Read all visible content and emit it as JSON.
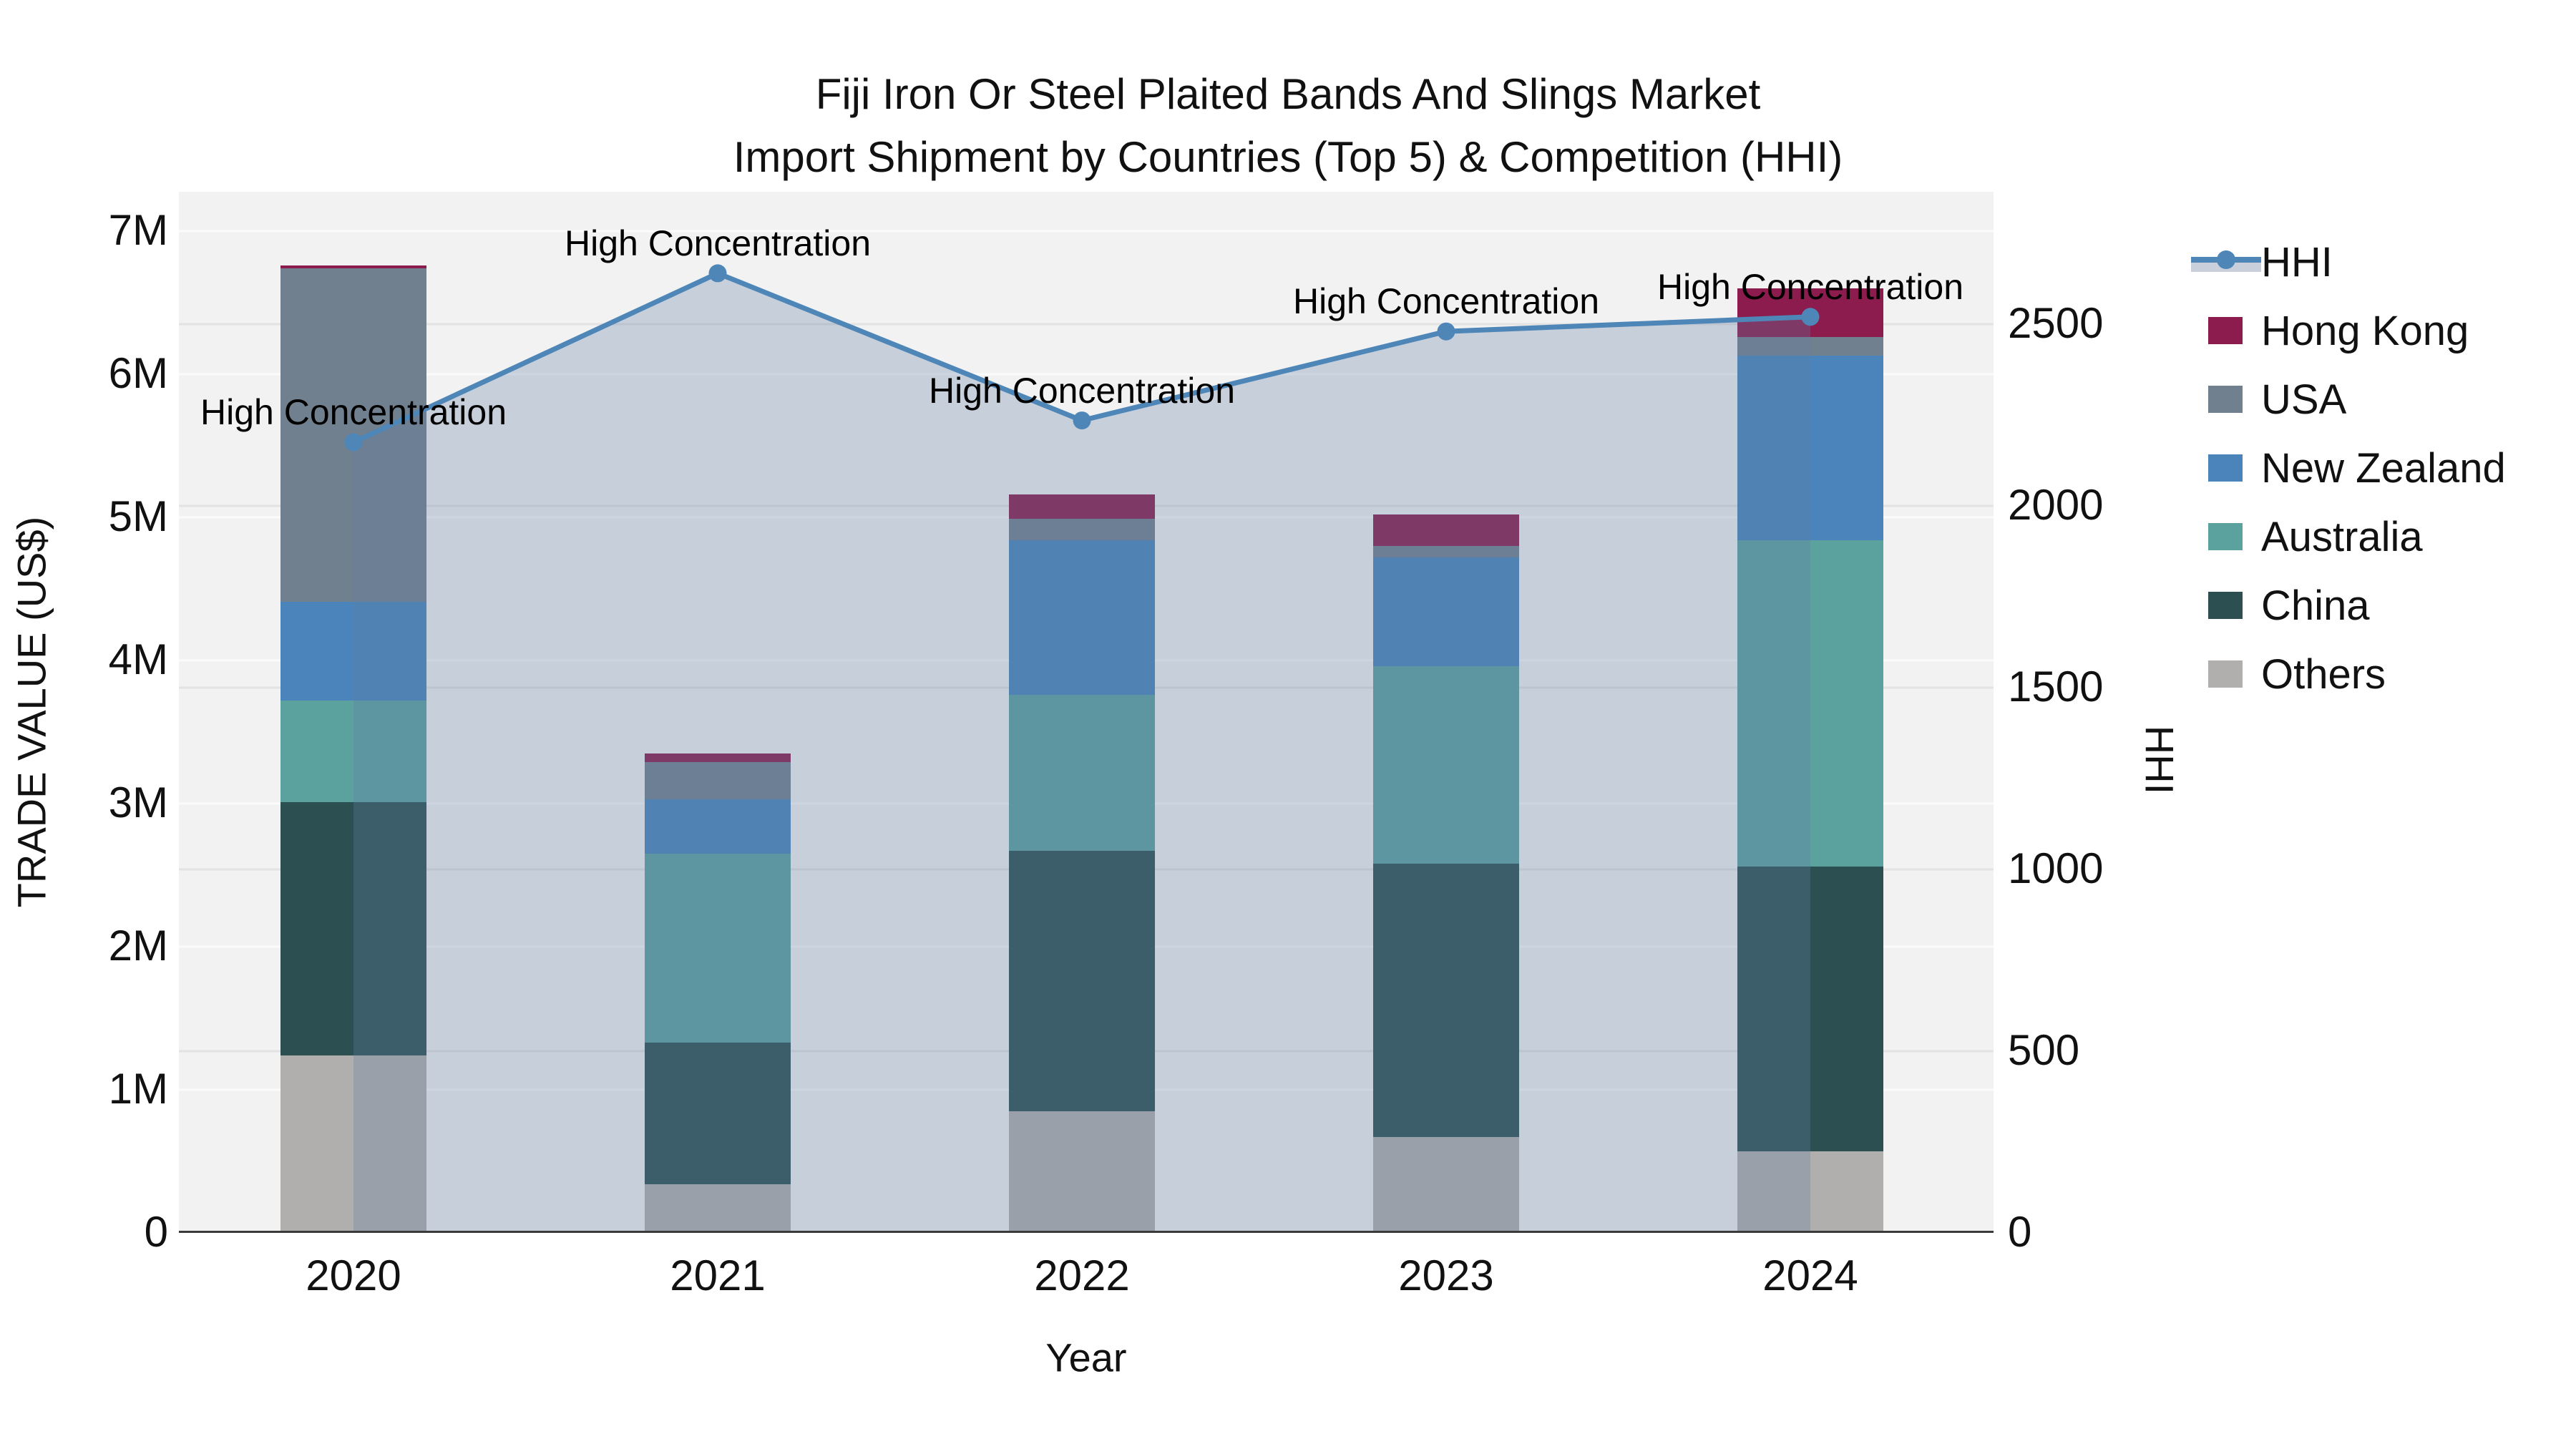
{
  "title": "Fiji Iron Or Steel Plaited Bands And Slings Market",
  "subtitle": "Import Shipment by Countries (Top 5) & Competition (HHI)",
  "axes": {
    "x_title": "Year",
    "y_left_title": "TRADE VALUE (US$)",
    "y_right_title": "HHI",
    "y_left_ticks": [
      "0",
      "1M",
      "2M",
      "3M",
      "4M",
      "5M",
      "6M",
      "7M"
    ],
    "y_right_ticks": [
      "0",
      "500",
      "1000",
      "1500",
      "2000",
      "2500"
    ]
  },
  "annotation_text": "High Concentration",
  "legend": {
    "items": [
      {
        "label": "HHI",
        "kind": "line",
        "color": "#4E86B8"
      },
      {
        "label": "Hong Kong",
        "kind": "swatch",
        "color": "#8B1C4D"
      },
      {
        "label": "USA",
        "kind": "swatch",
        "color": "#71808F"
      },
      {
        "label": "New Zealand",
        "kind": "swatch",
        "color": "#4A84BB"
      },
      {
        "label": "Australia",
        "kind": "swatch",
        "color": "#5BA19E"
      },
      {
        "label": "China",
        "kind": "swatch",
        "color": "#2C4F51"
      },
      {
        "label": "Others",
        "kind": "swatch",
        "color": "#B0AFAD"
      }
    ]
  },
  "chart_data": {
    "type": "bar",
    "subtype": "stacked-bars-with-line",
    "title": "Fiji Iron Or Steel Plaited Bands And Slings Market — Import Shipment by Countries (Top 5) & Competition (HHI)",
    "categories": [
      "2020",
      "2021",
      "2022",
      "2023",
      "2024"
    ],
    "bar_unit": "Million US$ (trade value)",
    "xlabel": "Year",
    "ylabel_left": "TRADE VALUE (US$)",
    "ylabel_right": "HHI",
    "ylim_left": [
      0,
      7.275
    ],
    "ylim_right": [
      0,
      2864
    ],
    "grid": "on",
    "legend_position": "right",
    "series": [
      {
        "name": "Others",
        "color": "#B0AFAD",
        "values": [
          1.24,
          0.34,
          0.85,
          0.67,
          0.57
        ]
      },
      {
        "name": "China",
        "color": "#2C4F51",
        "values": [
          1.77,
          0.99,
          1.82,
          1.91,
          1.99
        ]
      },
      {
        "name": "Australia",
        "color": "#5BA19E",
        "values": [
          0.71,
          1.32,
          1.09,
          1.38,
          2.28
        ]
      },
      {
        "name": "New Zealand",
        "color": "#4A84BB",
        "values": [
          0.69,
          0.38,
          1.08,
          0.76,
          1.29
        ]
      },
      {
        "name": "USA",
        "color": "#71808F",
        "values": [
          2.33,
          0.26,
          0.15,
          0.08,
          0.13
        ]
      },
      {
        "name": "Hong Kong",
        "color": "#8B1C4D",
        "values": [
          0.02,
          0.06,
          0.17,
          0.22,
          0.34
        ]
      }
    ],
    "bar_totals": [
      6.76,
      3.35,
      5.16,
      5.02,
      6.6
    ],
    "line": {
      "name": "HHI",
      "color": "#4E86B8",
      "area_fill": "rgba(100,125,165,0.30)",
      "values": [
        2175,
        2640,
        2235,
        2480,
        2520
      ],
      "point_annotations": [
        "High Concentration",
        "High Concentration",
        "High Concentration",
        "High Concentration",
        "High Concentration"
      ]
    }
  }
}
